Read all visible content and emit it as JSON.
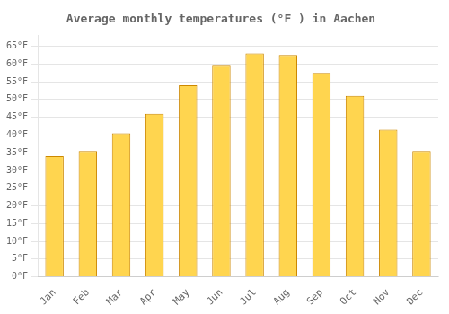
{
  "chart_data": {
    "type": "bar",
    "title": "Average monthly temperatures (°F ) in Aachen",
    "categories": [
      "Jan",
      "Feb",
      "Mar",
      "Apr",
      "May",
      "Jun",
      "Jul",
      "Aug",
      "Sep",
      "Oct",
      "Nov",
      "Dec"
    ],
    "values": [
      34.0,
      35.5,
      40.5,
      46.0,
      54.0,
      59.5,
      63.0,
      62.5,
      57.5,
      51.0,
      41.5,
      35.5
    ],
    "color": "#FFD54F",
    "ylim": [
      0,
      68
    ],
    "yticks": [
      {
        "value": 0,
        "label": "0°F"
      },
      {
        "value": 5,
        "label": "5°F"
      },
      {
        "value": 10,
        "label": "10°F"
      },
      {
        "value": 15,
        "label": "15°F"
      },
      {
        "value": 20,
        "label": "20°F"
      },
      {
        "value": 25,
        "label": "25°F"
      },
      {
        "value": 30,
        "label": "30°F"
      },
      {
        "value": 35,
        "label": "35°F"
      },
      {
        "value": 40,
        "label": "40°F"
      },
      {
        "value": 45,
        "label": "45°F"
      },
      {
        "value": 50,
        "label": "50°F"
      },
      {
        "value": 55,
        "label": "55°F"
      },
      {
        "value": 60,
        "label": "60°F"
      },
      {
        "value": 65,
        "label": "65°F"
      }
    ],
    "grid": true
  }
}
